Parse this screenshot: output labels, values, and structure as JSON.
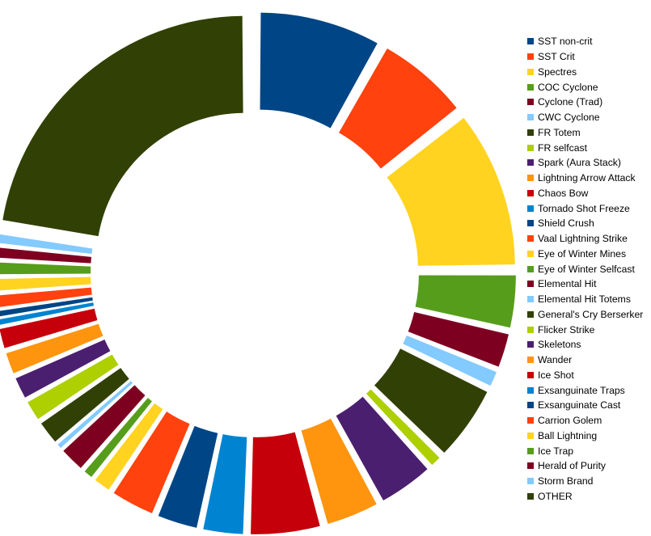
{
  "chart_data": {
    "type": "pie",
    "style": "exploded-donut",
    "start_angle_deg": 0,
    "legend_position": "right",
    "slices": [
      {
        "label": "SST non-crit",
        "value": 8.0,
        "color": "#004586"
      },
      {
        "label": "SST Crit",
        "value": 6.1,
        "color": "#ff420e"
      },
      {
        "label": "Spectres",
        "value": 10.3,
        "color": "#ffd320"
      },
      {
        "label": "COC Cyclone",
        "value": 3.6,
        "color": "#579d1c"
      },
      {
        "label": "Cyclone (Trad)",
        "value": 2.4,
        "color": "#7e0021"
      },
      {
        "label": "CWC Cyclone",
        "value": 1.2,
        "color": "#83caff"
      },
      {
        "label": "FR Totem",
        "value": 5.0,
        "color": "#314004"
      },
      {
        "label": "FR selfcast",
        "value": 0.9,
        "color": "#aecf00"
      },
      {
        "label": "Spark (Aura Stack)",
        "value": 3.7,
        "color": "#4b1f6f"
      },
      {
        "label": "Lightning Arrow Attack",
        "value": 3.6,
        "color": "#ff950e"
      },
      {
        "label": "Chaos Bow",
        "value": 4.7,
        "color": "#c5000b"
      },
      {
        "label": "Tornado Shot Freeze",
        "value": 2.8,
        "color": "#0084d1"
      },
      {
        "label": "Shield Crush",
        "value": 2.8,
        "color": "#004586"
      },
      {
        "label": "Vaal Lightning Strike",
        "value": 3.0,
        "color": "#ff420e"
      },
      {
        "label": "Eye of Winter Mines",
        "value": 1.3,
        "color": "#ffd320"
      },
      {
        "label": "Eye of Winter Selfcast",
        "value": 0.8,
        "color": "#579d1c"
      },
      {
        "label": "Elemental Hit",
        "value": 1.8,
        "color": "#7e0021"
      },
      {
        "label": "Elemental Hit Totems",
        "value": 0.4,
        "color": "#83caff"
      },
      {
        "label": "General's Cry Berserker",
        "value": 1.7,
        "color": "#314004"
      },
      {
        "label": "Flicker Strike",
        "value": 1.5,
        "color": "#aecf00"
      },
      {
        "label": "Skeletons",
        "value": 1.6,
        "color": "#4b1f6f"
      },
      {
        "label": "Wander",
        "value": 1.6,
        "color": "#ff950e"
      },
      {
        "label": "Ice Shot",
        "value": 1.5,
        "color": "#c5000b"
      },
      {
        "label": "Exsanguinate Traps",
        "value": 0.5,
        "color": "#0084d1"
      },
      {
        "label": "Exsanguinate Cast",
        "value": 0.5,
        "color": "#004586"
      },
      {
        "label": "Carrion Golem",
        "value": 1.0,
        "color": "#ff420e"
      },
      {
        "label": "Ball Lightning",
        "value": 1.0,
        "color": "#ffd320"
      },
      {
        "label": "Ice Trap",
        "value": 1.0,
        "color": "#579d1c"
      },
      {
        "label": "Herald of Purity",
        "value": 0.9,
        "color": "#7e0021"
      },
      {
        "label": "Storm Brand",
        "value": 0.8,
        "color": "#83caff"
      },
      {
        "label": "OTHER",
        "value": 22.0,
        "color": "#314004"
      }
    ]
  }
}
